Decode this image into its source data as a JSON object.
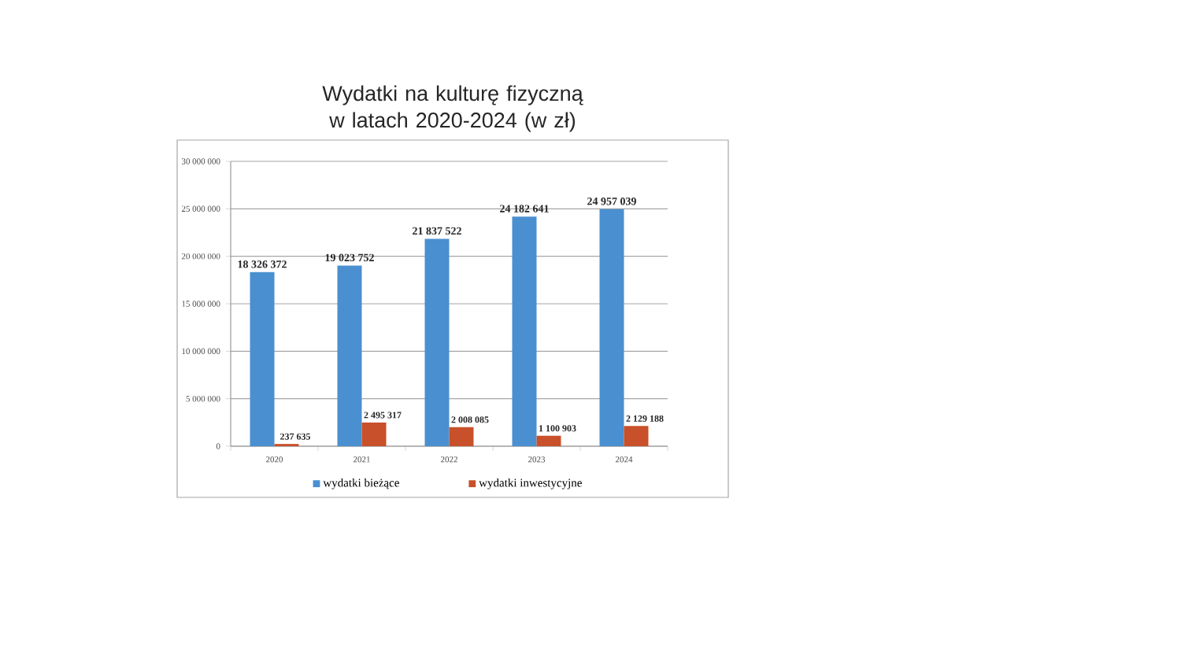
{
  "chart_data": {
    "type": "bar",
    "title": "Wydatki na kulturę fizyczną w latach 2020-2024 (w zł)",
    "categories": [
      "2020",
      "2021",
      "2022",
      "2023",
      "2024"
    ],
    "series": [
      {
        "name": "wydatki bieżące",
        "color": "#4a8fd0",
        "values": [
          18326372,
          19023752,
          21837522,
          24182641,
          24957039
        ],
        "value_labels": [
          "18 326 372",
          "19 023 752",
          "21 837 522",
          "24 182 641",
          "24 957 039"
        ]
      },
      {
        "name": "wydatki inwestycyjne",
        "color": "#c8502a",
        "values": [
          237635,
          2495317,
          2008085,
          1100903,
          2129188
        ],
        "value_labels": [
          "237 635",
          "2 495 317",
          "2 008 085",
          "1 100 903",
          "2 129 188"
        ]
      }
    ],
    "ylim": [
      0,
      30000000
    ],
    "yticks": [
      0,
      {
        "value": 5000000,
        "label": "5 000 000"
      },
      {
        "value": 10000000,
        "label": "10 000 000"
      },
      {
        "value": 15000000,
        "label": "15 000 000"
      },
      {
        "value": 20000000,
        "label": "20 000 000"
      },
      {
        "value": 25000000,
        "label": "25 000 000"
      },
      {
        "value": 30000000,
        "label": "30 000 000"
      }
    ],
    "grid": "y",
    "legend": "bottom"
  }
}
